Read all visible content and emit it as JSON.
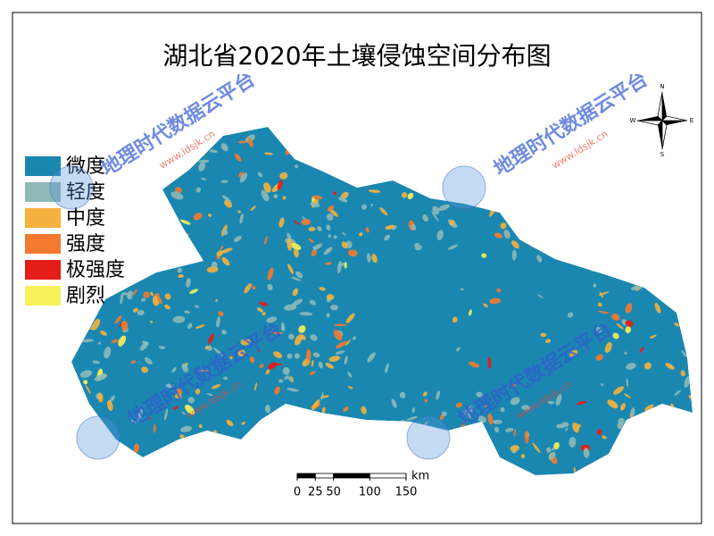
{
  "title": "湖北省2020年土壤侵蚀空间分布图",
  "legend": [
    {
      "label": "微度",
      "color": "#1a87b0"
    },
    {
      "label": "轻度",
      "color": "#8fb9b6"
    },
    {
      "label": "中度",
      "color": "#f5b13d"
    },
    {
      "label": "强度",
      "color": "#f37a2e"
    },
    {
      "label": "极强度",
      "color": "#e31d17"
    },
    {
      "label": "剧烈",
      "color": "#f7f25a"
    }
  ],
  "compass": {
    "north": "N",
    "east": "E",
    "south": "S",
    "west": "W"
  },
  "scale_bar": {
    "unit": "km",
    "ticks": [
      0,
      25,
      50,
      100,
      150
    ]
  },
  "watermark": {
    "text": "地理时代数据云平台",
    "url": "www.ldsjk.cn"
  }
}
